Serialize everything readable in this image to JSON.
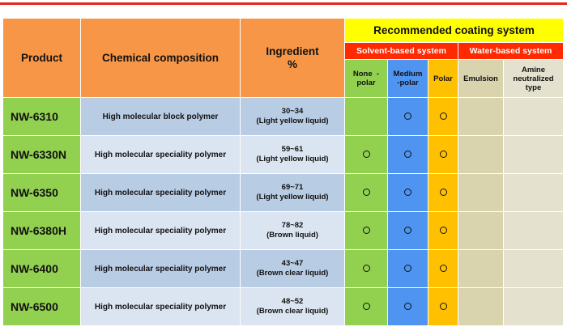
{
  "header": {
    "product": "Product",
    "chemical": "Chemical composition",
    "ingredient_line1": "Ingredient",
    "ingredient_line2": "%",
    "recommended": "Recommended coating system",
    "solvent": "Solvent-based system",
    "water": "Water-based system",
    "none_polar_line1": "None  -",
    "none_polar_line2": "polar",
    "medium_polar_line1": "Medium",
    "medium_polar_line2": "-polar",
    "polar": "Polar",
    "emulsion": "Emulsion",
    "amine_line1": "Amine",
    "amine_line2": "neutralized",
    "amine_line3": "type"
  },
  "colors": {
    "orange": "#f79646",
    "yellow": "#ffff00",
    "red": "#ff2a00",
    "green": "#92d050",
    "blue": "#4f94f0",
    "gold": "#ffc000",
    "row_dark": "#b8cce4",
    "row_light": "#dbe5f1"
  },
  "mark_symbol": "circle",
  "rows": [
    {
      "product": "NW-6310",
      "chemical": "High molecular block polymer",
      "range": "30~34",
      "form": "(Light yellow liquid)",
      "none_polar": false,
      "medium_polar": true,
      "polar": true,
      "emulsion": false,
      "amine": false
    },
    {
      "product": "NW-6330N",
      "chemical": "High molecular speciality polymer",
      "range": "59~61",
      "form": "(Light yellow liquid)",
      "none_polar": true,
      "medium_polar": true,
      "polar": true,
      "emulsion": false,
      "amine": false
    },
    {
      "product": "NW-6350",
      "chemical": "High molecular speciality polymer",
      "range": "69~71",
      "form": "(Light yellow liquid)",
      "none_polar": true,
      "medium_polar": true,
      "polar": true,
      "emulsion": false,
      "amine": false
    },
    {
      "product": "NW-6380H",
      "chemical": "High molecular speciality polymer",
      "range": "78~82",
      "form": "(Brown liquid)",
      "none_polar": true,
      "medium_polar": true,
      "polar": true,
      "emulsion": false,
      "amine": false
    },
    {
      "product": "NW-6400",
      "chemical": "High molecular speciality polymer",
      "range": "43~47",
      "form": "(Brown clear liquid)",
      "none_polar": true,
      "medium_polar": true,
      "polar": true,
      "emulsion": false,
      "amine": false
    },
    {
      "product": "NW-6500",
      "chemical": "High molecular speciality polymer",
      "range": "48~52",
      "form": "(Brown clear liquid)",
      "none_polar": true,
      "medium_polar": true,
      "polar": true,
      "emulsion": false,
      "amine": false
    }
  ]
}
